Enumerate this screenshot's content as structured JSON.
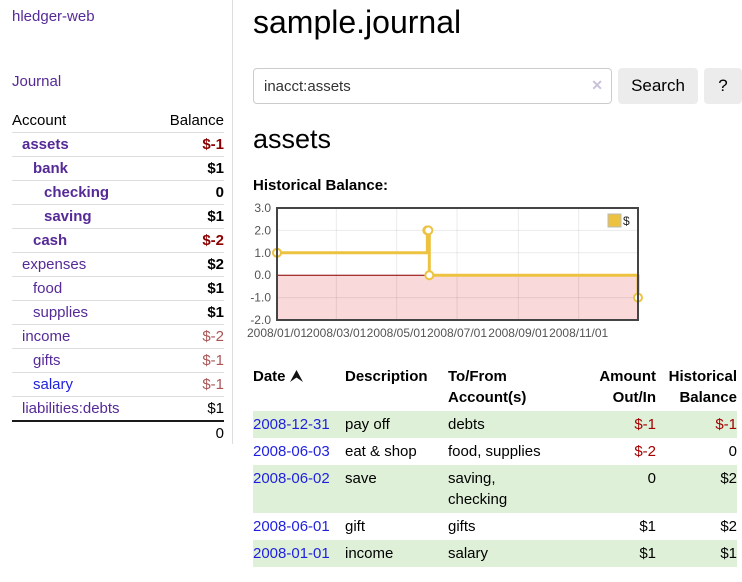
{
  "app": {
    "brand": "hledger-web"
  },
  "nav": {
    "journal": "Journal"
  },
  "sidebar": {
    "header": {
      "account": "Account",
      "balance": "Balance"
    },
    "rows": [
      {
        "name": "assets",
        "balance": "$-1",
        "depth": 1,
        "bold": true,
        "negative": true
      },
      {
        "name": "bank",
        "balance": "$1",
        "depth": 2,
        "bold": true,
        "negative": false
      },
      {
        "name": "checking",
        "balance": "0",
        "depth": 3,
        "bold": true,
        "negative": false
      },
      {
        "name": "saving",
        "balance": "$1",
        "depth": 3,
        "bold": true,
        "negative": false
      },
      {
        "name": "cash",
        "balance": "$-2",
        "depth": 2,
        "bold": true,
        "negative": true
      },
      {
        "name": "expenses",
        "balance": "$2",
        "depth": 1,
        "bold": false,
        "negative": false
      },
      {
        "name": "food",
        "balance": "$1",
        "depth": 2,
        "bold": false,
        "negative": false
      },
      {
        "name": "supplies",
        "balance": "$1",
        "depth": 2,
        "bold": false,
        "negative": false
      },
      {
        "name": "income",
        "balance": "$-2",
        "depth": 1,
        "bold": false,
        "negative": true
      },
      {
        "name": "gifts",
        "balance": "$-1",
        "depth": 2,
        "bold": false,
        "negative": true
      },
      {
        "name": "salary",
        "balance": "$-1",
        "depth": 2,
        "bold": false,
        "negative": true
      },
      {
        "name": "liabilities:debts",
        "balance": "$1",
        "depth": 1,
        "bold": false,
        "negative": false
      }
    ],
    "total": "0"
  },
  "header": {
    "title": "sample.journal"
  },
  "search": {
    "value": "inacct:assets",
    "clear_icon": "✕",
    "button_label": "Search",
    "help_label": "?"
  },
  "account": {
    "title": "assets",
    "section_label": "Historical Balance:"
  },
  "chart_data": {
    "type": "line",
    "step": true,
    "title": "Historical Balance",
    "legend_position": "top-right",
    "xlim": [
      "2008-01-01",
      "2008-12-31"
    ],
    "ylim": [
      -2,
      3
    ],
    "x_ticks": [
      {
        "date": "2008-01-01",
        "label": "2008/01/01"
      },
      {
        "date": "2008-03-01",
        "label": "2008/03/01"
      },
      {
        "date": "2008-05-01",
        "label": "2008/05/01"
      },
      {
        "date": "2008-07-01",
        "label": "2008/07/01"
      },
      {
        "date": "2008-09-01",
        "label": "2008/09/01"
      },
      {
        "date": "2008-11-01",
        "label": "2008/11/01"
      }
    ],
    "y_ticks": [
      {
        "value": 3,
        "label": "3.0"
      },
      {
        "value": 2,
        "label": "2.0"
      },
      {
        "value": 1,
        "label": "1.0"
      },
      {
        "value": 0,
        "label": "0.0"
      },
      {
        "value": -1,
        "label": "-1.0"
      },
      {
        "value": -2,
        "label": "-2.0"
      }
    ],
    "series": [
      {
        "name": "$",
        "color": "#edc240",
        "points": [
          [
            "2008-01-01",
            1
          ],
          [
            "2008-06-01",
            2
          ],
          [
            "2008-06-02",
            2
          ],
          [
            "2008-06-03",
            0
          ],
          [
            "2008-12-31",
            -1
          ]
        ]
      }
    ],
    "colors": {
      "negative_fill": "#f9d9d9",
      "zero_line": "#8b0000",
      "border": "#444444",
      "grid": "rgba(0,0,0,0.08)"
    }
  },
  "register": {
    "columns": [
      "Date",
      "Description",
      "To/From Account(s)",
      "Amount Out/In",
      "Historical Balance"
    ],
    "rows": [
      {
        "date": "2008-12-31",
        "description": "pay off",
        "accounts": "debts",
        "amount": "$-1",
        "balance": "$-1"
      },
      {
        "date": "2008-06-03",
        "description": "eat & shop",
        "accounts": "food, supplies",
        "amount": "$-2",
        "balance": "0"
      },
      {
        "date": "2008-06-02",
        "description": "save",
        "accounts": "saving, checking",
        "amount": "0",
        "balance": "$2"
      },
      {
        "date": "2008-06-01",
        "description": "gift",
        "accounts": "gifts",
        "amount": "$1",
        "balance": "$2"
      },
      {
        "date": "2008-01-01",
        "description": "income",
        "accounts": "salary",
        "amount": "$1",
        "balance": "$1"
      }
    ]
  }
}
